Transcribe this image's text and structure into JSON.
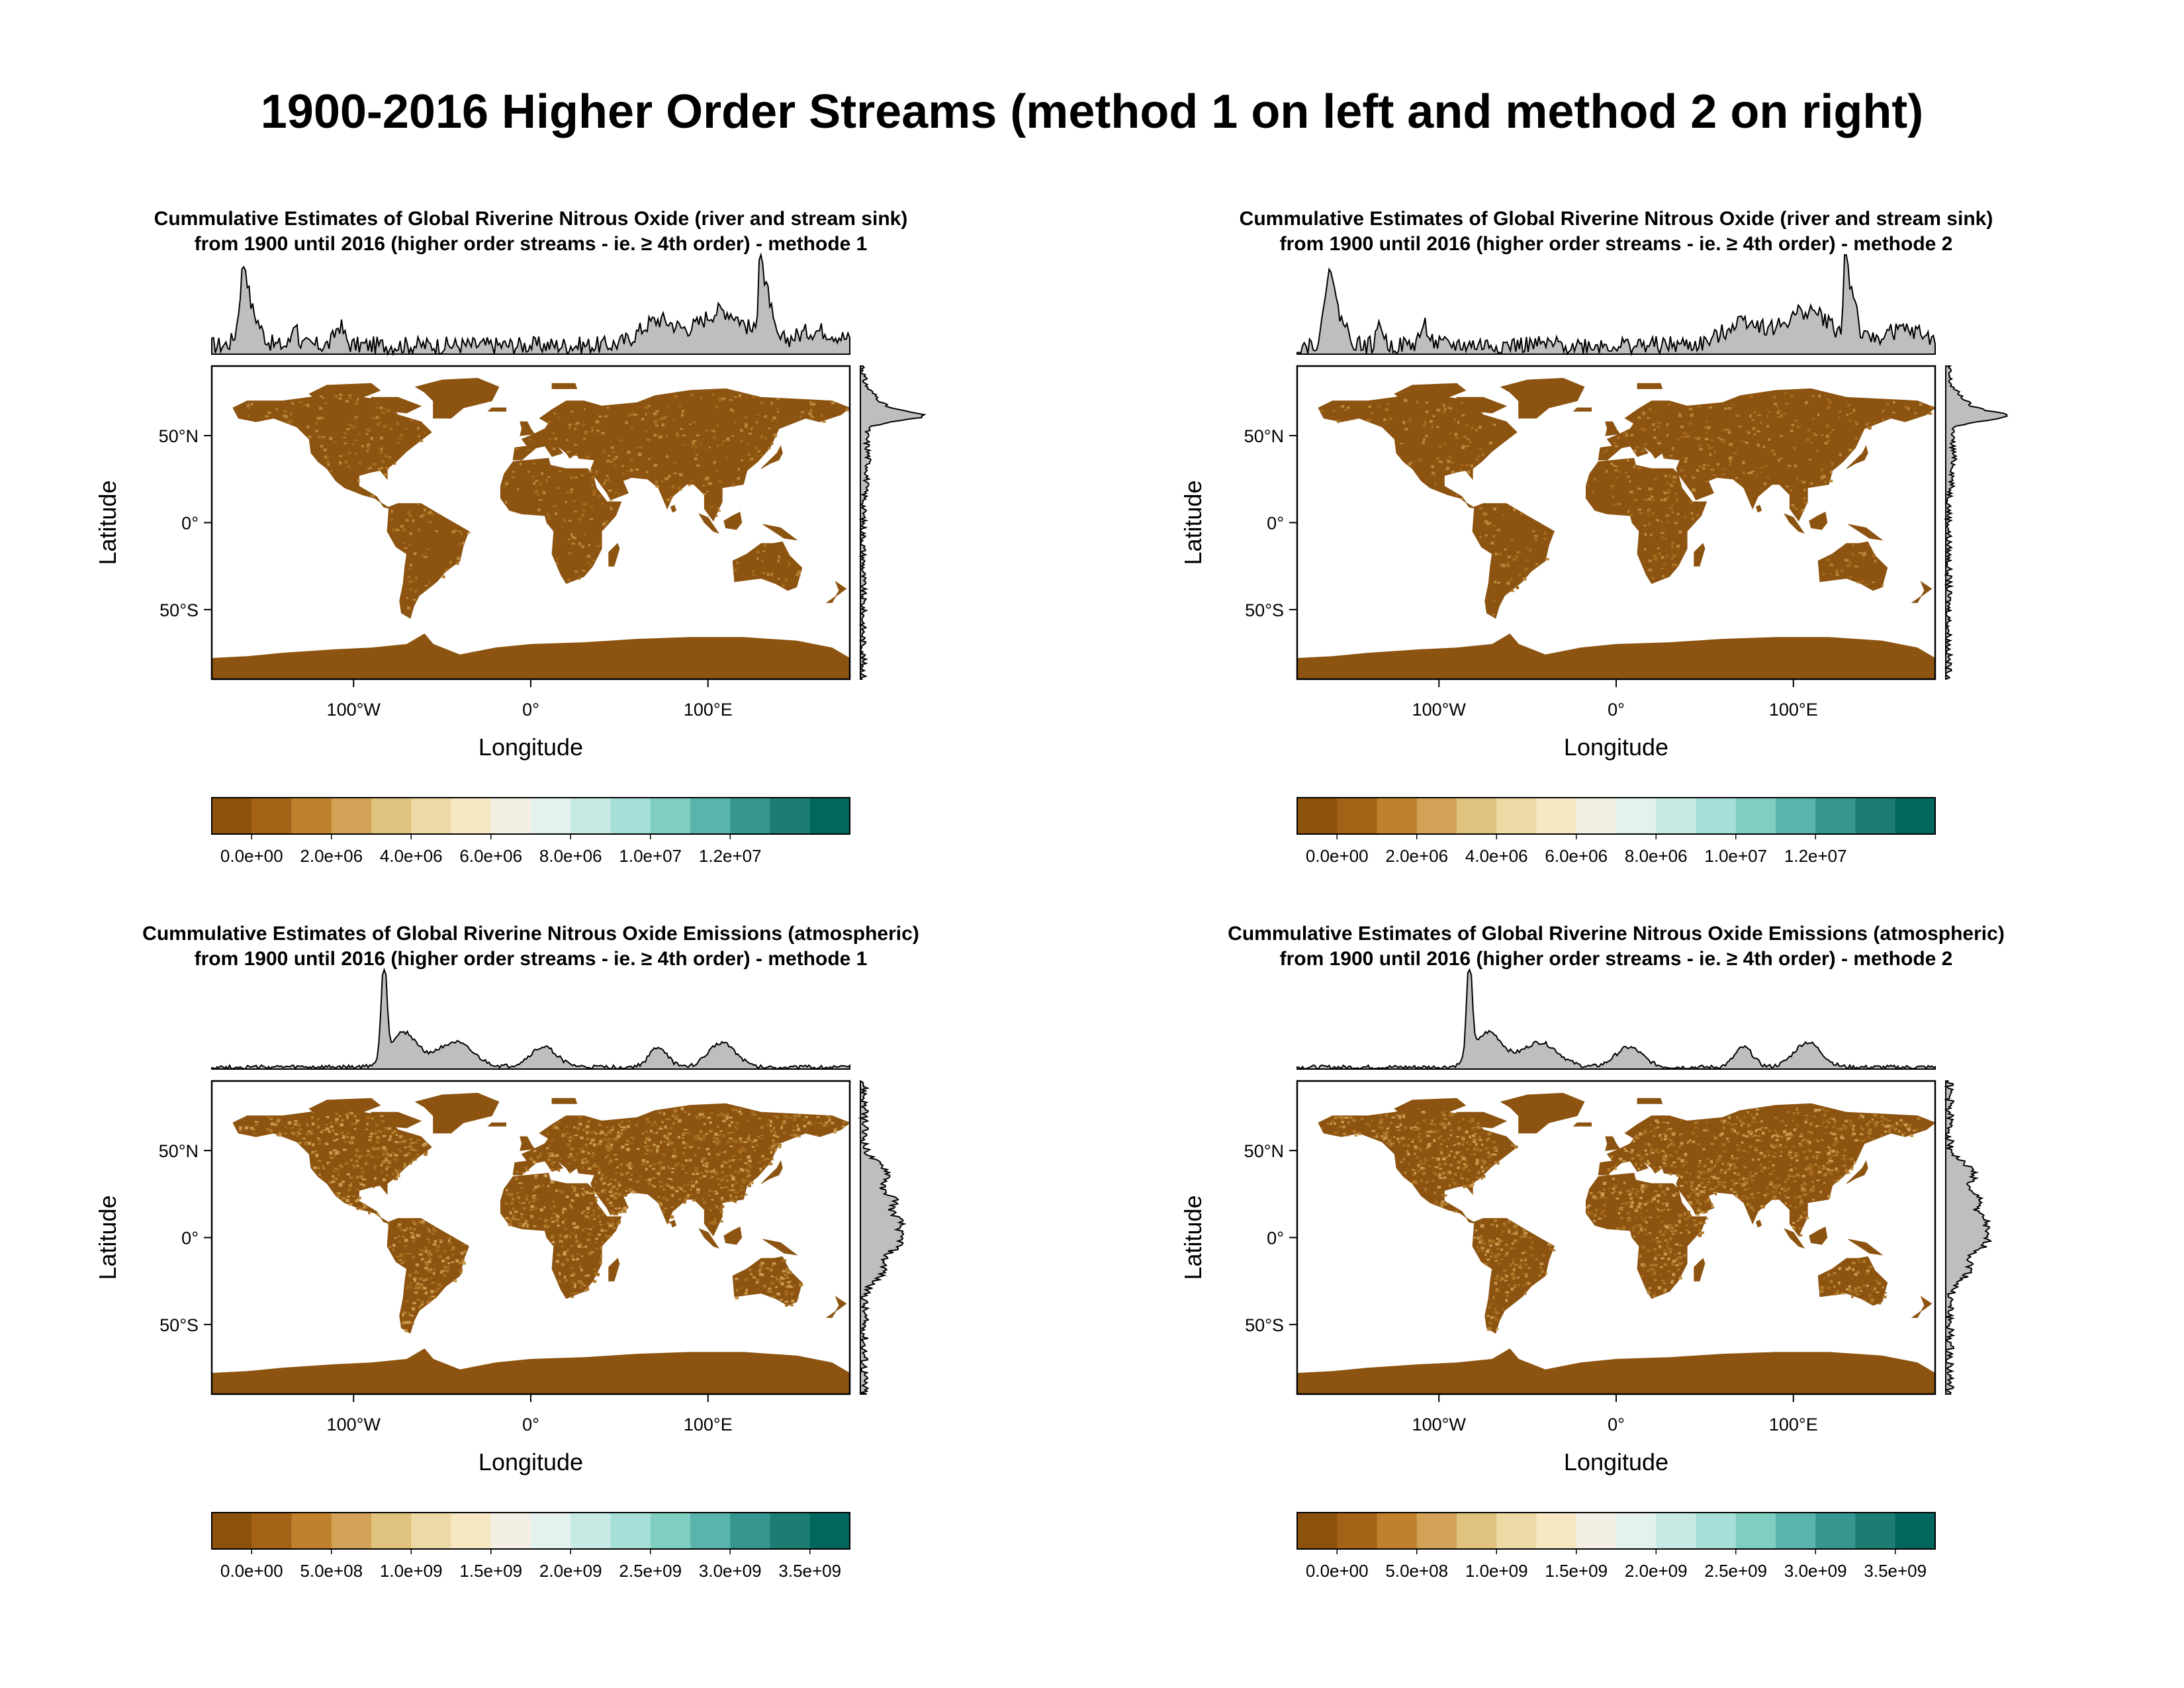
{
  "page_title": "1900-2016 Higher Order Streams (method 1 on left and method 2 on right)",
  "colors": {
    "land": "#8c5410",
    "ocean": "#ffffff",
    "marginal_fill": "#bebebe",
    "palette": [
      "#8c510a",
      "#a36215",
      "#bf812d",
      "#d2a356",
      "#dfc27d",
      "#ecd9a6",
      "#f6e8c3",
      "#f3efe4",
      "#e3f1ef",
      "#c7eae5",
      "#a6dfd7",
      "#80cdc1",
      "#5ab4ac",
      "#35978f",
      "#1d7d72",
      "#01665e"
    ]
  },
  "chart_data": [
    {
      "type": "map",
      "title_line1": "Cummulative Estimates of Global Riverine Nitrous Oxide (river and stream sink)",
      "title_line2": "from 1900 until 2016 (higher order streams - ie. ≥ 4th order) - methode 1",
      "xlabel": "Longitude",
      "ylabel": "Latitude",
      "x_ticks": [
        "100°W",
        "0°",
        "100°E"
      ],
      "y_ticks": [
        "50°N",
        "0°",
        "50°S"
      ],
      "colorbar_ticks": [
        "0.0e+00",
        "2.0e+06",
        "4.0e+06",
        "6.0e+06",
        "8.0e+06",
        "1.0e+07",
        "1.2e+07"
      ],
      "colorbar_range": [
        -1000000,
        15000000
      ]
    },
    {
      "type": "map",
      "title_line1": "Cummulative Estimates of Global Riverine Nitrous Oxide (river and stream sink)",
      "title_line2": "from 1900 until 2016 (higher order streams - ie. ≥ 4th order) - methode 2",
      "xlabel": "Longitude",
      "ylabel": "Latitude",
      "x_ticks": [
        "100°W",
        "0°",
        "100°E"
      ],
      "y_ticks": [
        "50°N",
        "0°",
        "50°S"
      ],
      "colorbar_ticks": [
        "0.0e+00",
        "2.0e+06",
        "4.0e+06",
        "6.0e+06",
        "8.0e+06",
        "1.0e+07",
        "1.2e+07"
      ],
      "colorbar_range": [
        -1000000,
        15000000
      ]
    },
    {
      "type": "map",
      "title_line1": "Cummulative Estimates of Global Riverine Nitrous Oxide Emissions (atmospheric)",
      "title_line2": "from 1900 until 2016 (higher order streams - ie. ≥ 4th order) - methode 1",
      "xlabel": "Longitude",
      "ylabel": "Latitude",
      "x_ticks": [
        "100°W",
        "0°",
        "100°E"
      ],
      "y_ticks": [
        "50°N",
        "0°",
        "50°S"
      ],
      "colorbar_ticks": [
        "0.0e+00",
        "5.0e+08",
        "1.0e+09",
        "1.5e+09",
        "2.0e+09",
        "2.5e+09",
        "3.0e+09",
        "3.5e+09"
      ],
      "colorbar_range": [
        -250000000,
        3750000000
      ]
    },
    {
      "type": "map",
      "title_line1": "Cummulative Estimates of Global Riverine Nitrous Oxide Emissions (atmospheric)",
      "title_line2": "from 1900 until 2016 (higher order streams - ie. ≥ 4th order) - methode 2",
      "xlabel": "Longitude",
      "ylabel": "Latitude",
      "x_ticks": [
        "100°W",
        "0°",
        "100°E"
      ],
      "y_ticks": [
        "50°N",
        "0°",
        "50°S"
      ],
      "colorbar_ticks": [
        "0.0e+00",
        "5.0e+08",
        "1.0e+09",
        "1.5e+09",
        "2.0e+09",
        "2.5e+09",
        "3.0e+09",
        "3.5e+09"
      ],
      "colorbar_range": [
        -250000000,
        3750000000
      ]
    }
  ]
}
